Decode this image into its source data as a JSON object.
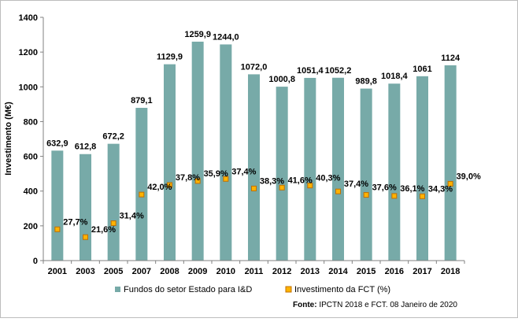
{
  "chart_data": {
    "type": "bar",
    "categories": [
      "2001",
      "2003",
      "2005",
      "2007",
      "2008",
      "2009",
      "2010",
      "2011",
      "2012",
      "2013",
      "2014",
      "2015",
      "2016",
      "2017",
      "2018"
    ],
    "ylabel": "Investimento (M€)",
    "ylim": [
      0,
      1400
    ],
    "yticks": [
      0,
      200,
      400,
      600,
      800,
      1000,
      1200,
      1400
    ],
    "grid": false,
    "legend_position": "bottom",
    "series": [
      {
        "name": "Fundos do setor Estado para I&D",
        "type": "bar",
        "color": "#77aaa8",
        "values": [
          632.9,
          612.8,
          672.2,
          879.1,
          1129.9,
          1259.9,
          1244.0,
          1072.0,
          1000.8,
          1051.4,
          1052.2,
          989.8,
          1018.4,
          1061,
          1124
        ],
        "labels": [
          "632,9",
          "612,8",
          "672,2",
          "879,1",
          "1129,9",
          "1259,9",
          "1244,0",
          "1072,0",
          "1000,8",
          "1051,4",
          "1052,2",
          "989,8",
          "1018,4",
          "1061",
          "1124"
        ]
      },
      {
        "name": "Investimento da FCT (%)",
        "type": "scatter",
        "color": "#ffb300",
        "marker_edge": "#c07000",
        "values": [
          180,
          135,
          215,
          380,
          435,
          458,
          470,
          415,
          420,
          432,
          398,
          378,
          372,
          370,
          442
        ],
        "labels": [
          "27,7%",
          "21,6%",
          "31,4%",
          "42,0%",
          "37,8%",
          "35,9%",
          "37,4%",
          "38,3%",
          "41,6%",
          "40,3%",
          "37,4%",
          "37,6%",
          "36,1%",
          "34,3%",
          "39,0%"
        ]
      }
    ],
    "source_bold": "Fonte:",
    "source_text": " IPCTN 2018 e FCT. 08 Janeiro de 2020"
  }
}
